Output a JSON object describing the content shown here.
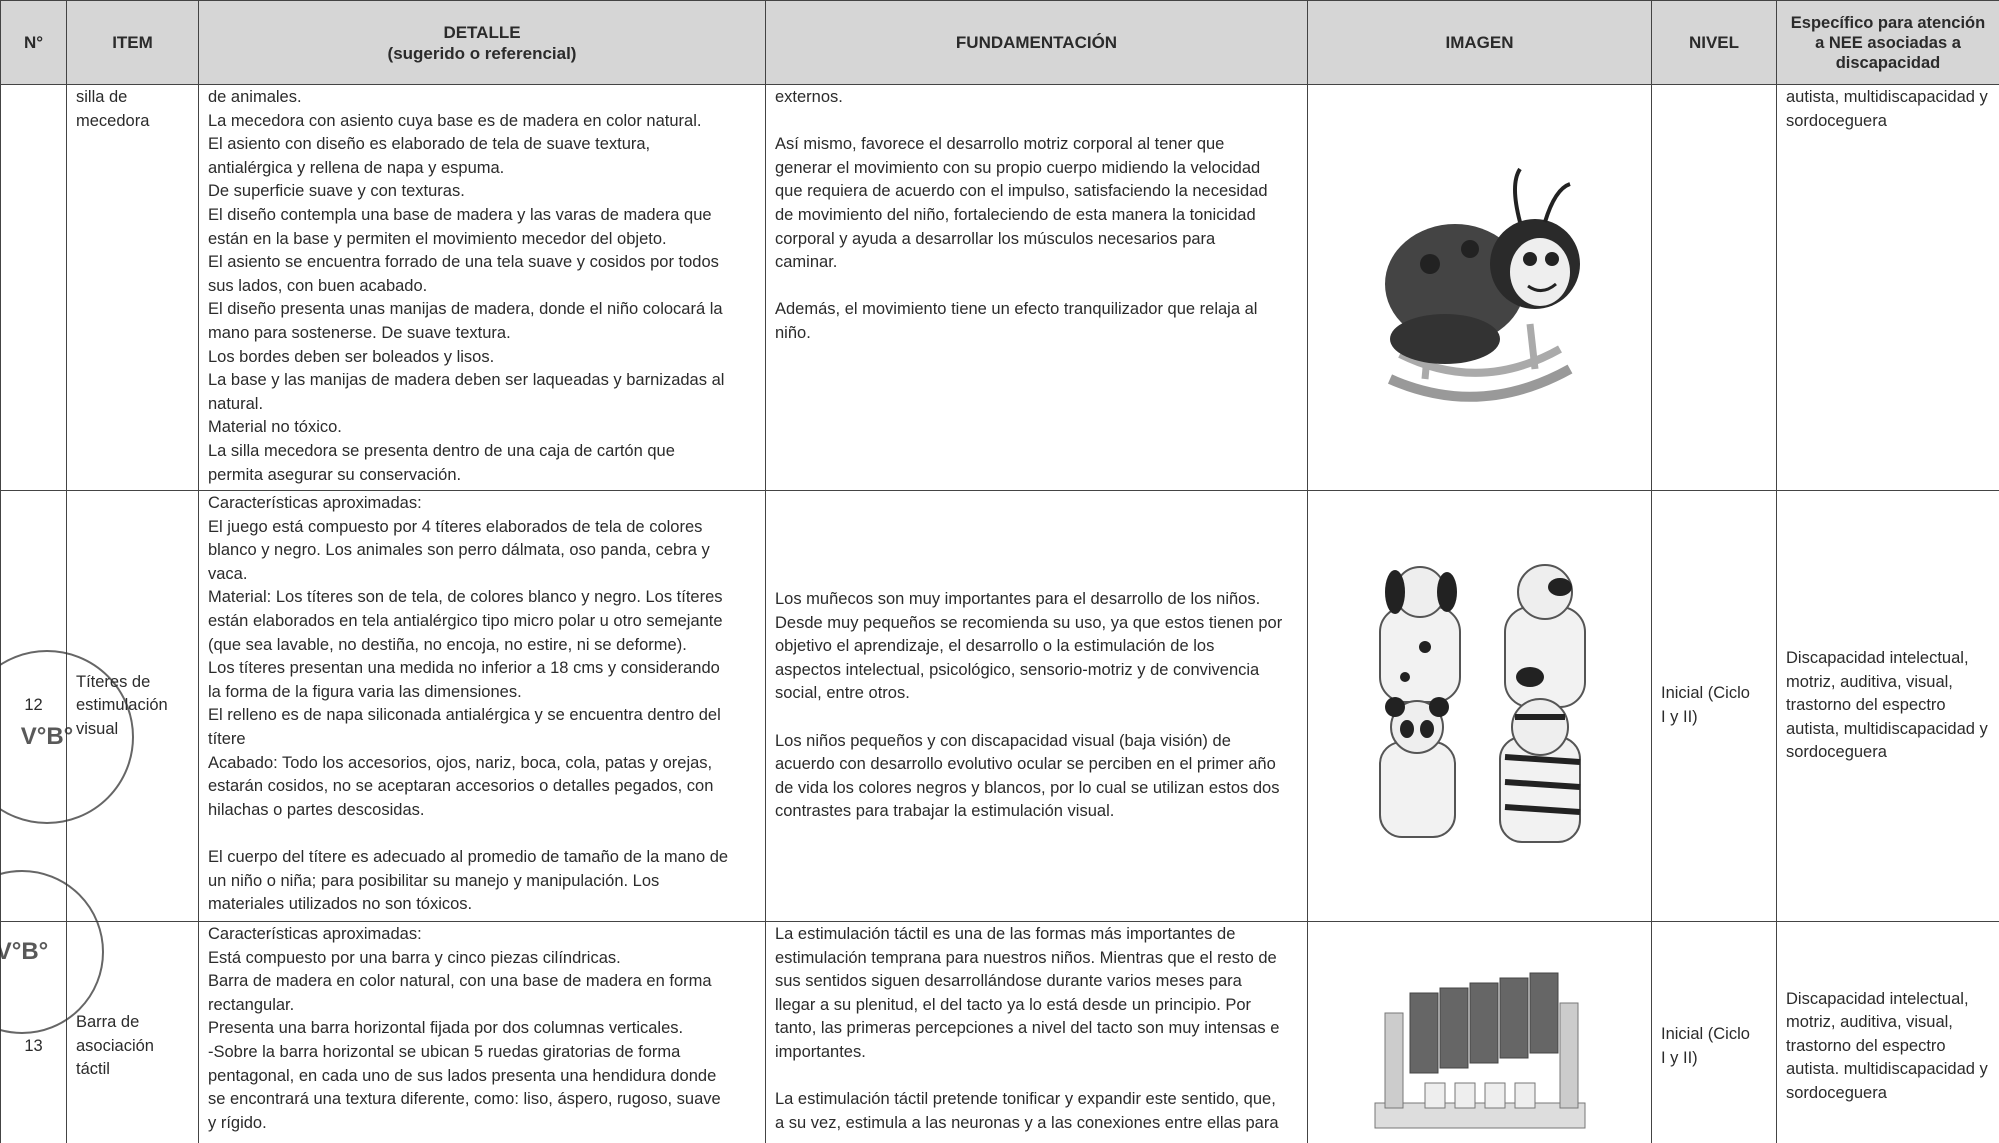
{
  "header": {
    "columns": [
      [
        "N°"
      ],
      [
        "ITEM"
      ],
      [
        "DETALLE",
        "(sugerido o referencial)"
      ],
      [
        "FUNDAMENTACIÓN"
      ],
      [
        "IMAGEN"
      ],
      [
        "NIVEL"
      ],
      [
        "Específico para atención",
        "a NEE asociadas a",
        "discapacidad"
      ]
    ]
  },
  "rows": [
    {
      "item": [
        "silla de",
        "mecedora"
      ],
      "detalle": [
        [
          "de animales.",
          "La mecedora con asiento cuya base es de madera en color natural.",
          "El asiento con diseño es elaborado de tela de suave textura,",
          "antialérgica y rellena de napa y espuma.",
          "De superficie suave y con texturas.",
          "El diseño contempla una base de madera y las varas de madera que",
          "están en la base y permiten el movimiento mecedor del objeto.",
          "El asiento se encuentra forrado de una tela suave y cosidos por todos",
          "sus lados, con buen acabado.",
          "El diseño presenta unas manijas de madera, donde el niño colocará la",
          "mano para sostenerse. De suave textura.",
          "Los bordes deben ser boleados y lisos.",
          "La base y las manijas de madera deben ser laqueadas y barnizadas al",
          "natural.",
          "Material no tóxico.",
          "La silla mecedora se presenta dentro de una caja de cartón que",
          "permita asegurar su conservación."
        ]
      ],
      "fundamentacion": [
        [
          "externos."
        ],
        [
          "Así mismo, favorece el desarrollo motriz corporal al tener que",
          "generar el movimiento con su propio cuerpo midiendo la velocidad",
          "que requiera de acuerdo con el impulso, satisfaciendo la necesidad",
          "de movimiento del niño, fortaleciendo de esta manera la tonicidad",
          "corporal y ayuda a desarrollar los músculos necesarios para",
          "caminar."
        ],
        [
          "Además, el movimiento tiene un efecto tranquilizador que relaja al",
          "niño."
        ]
      ],
      "nee": [
        "autista, multidiscapacidad y",
        "sordoceguera"
      ]
    },
    {
      "number": "12",
      "item": [
        "Títeres de",
        "estimulación",
        "visual"
      ],
      "detalle": [
        [
          "Características aproximadas:",
          "El juego está compuesto por 4 títeres elaborados de tela de colores",
          "blanco y negro. Los animales son perro dálmata, oso panda, cebra y",
          "vaca.",
          "Material: Los títeres son de tela, de colores blanco y negro. Los títeres",
          "están elaborados en tela antialérgico tipo micro polar u otro semejante",
          "(que sea lavable, no destiña, no encoja, no estire, ni se deforme).",
          "Los títeres presentan una medida no inferior a 18 cms y considerando",
          "la forma de la figura varia las dimensiones.",
          "El relleno es de napa siliconada antialérgica y se encuentra dentro del",
          "títere",
          "Acabado: Todo los accesorios, ojos, nariz, boca, cola, patas y orejas,",
          "estarán cosidos, no se aceptaran  accesorios o detalles pegados, con",
          "hilachas o partes descosidas."
        ],
        [
          "El cuerpo del títere es adecuado al promedio de tamaño de la mano de",
          "un niño o niña; para posibilitar su manejo y manipulación.  Los",
          "materiales utilizados no son tóxicos."
        ]
      ],
      "fundamentacion": [
        [
          "Los muñecos son muy importantes para el desarrollo de los niños.",
          "Desde muy pequeños se recomienda su uso, ya que estos tienen por",
          "objetivo el aprendizaje, el desarrollo o la estimulación de los",
          "aspectos intelectual, psicológico, sensorio-motriz y de convivencia",
          "social, entre otros."
        ],
        [
          "Los niños pequeños y con discapacidad visual (baja visión) de",
          "acuerdo con desarrollo evolutivo ocular se perciben en el primer año",
          "de vida los colores negros y blancos, por lo cual se utilizan estos dos",
          "contrastes para trabajar la estimulación visual."
        ]
      ],
      "nivel": [
        "Inicial (Ciclo",
        "I y II)"
      ],
      "nee": [
        "Discapacidad intelectual,",
        "motriz, auditiva, visual,",
        "trastorno del espectro",
        "autista, multidiscapacidad y",
        "sordoceguera"
      ]
    },
    {
      "number": "13",
      "item": [
        "Barra de",
        "asociación",
        "táctil"
      ],
      "detalle": [
        [
          "Características aproximadas:",
          "Está compuesto por una barra y cinco piezas cilíndricas.",
          "Barra de madera en color natural, con una base de madera en forma",
          "rectangular.",
          "Presenta una barra horizontal fijada por dos columnas verticales.",
          "-Sobre la barra horizontal se ubican 5 ruedas giratorias de forma",
          "pentagonal, en cada uno de sus lados presenta una hendidura donde",
          "se encontrará una textura diferente, como: liso, áspero, rugoso, suave",
          "y rígido."
        ]
      ],
      "fundamentacion": [
        [
          "La estimulación táctil es una de las formas más importantes de",
          "estimulación temprana para nuestros niños. Mientras que el resto de",
          "sus sentidos siguen desarrollándose durante varios meses para",
          "llegar a su plenitud, el del tacto ya lo está desde un principio. Por",
          "tanto, las primeras percepciones a nivel del tacto son muy intensas e",
          "importantes."
        ],
        [
          "La estimulación táctil pretende tonificar y expandir este sentido, que,",
          "a su vez, estimula a las neuronas y a las conexiones entre ellas para"
        ]
      ],
      "nivel": [
        "Inicial (Ciclo",
        "I y II)"
      ],
      "nee": [
        "Discapacidad intelectual,",
        "motriz, auditiva, visual,",
        "trastorno del espectro",
        "autista. multidiscapacidad y",
        "sordoceguera"
      ]
    }
  ],
  "stamps": [
    "V°B°",
    "V°B°"
  ]
}
